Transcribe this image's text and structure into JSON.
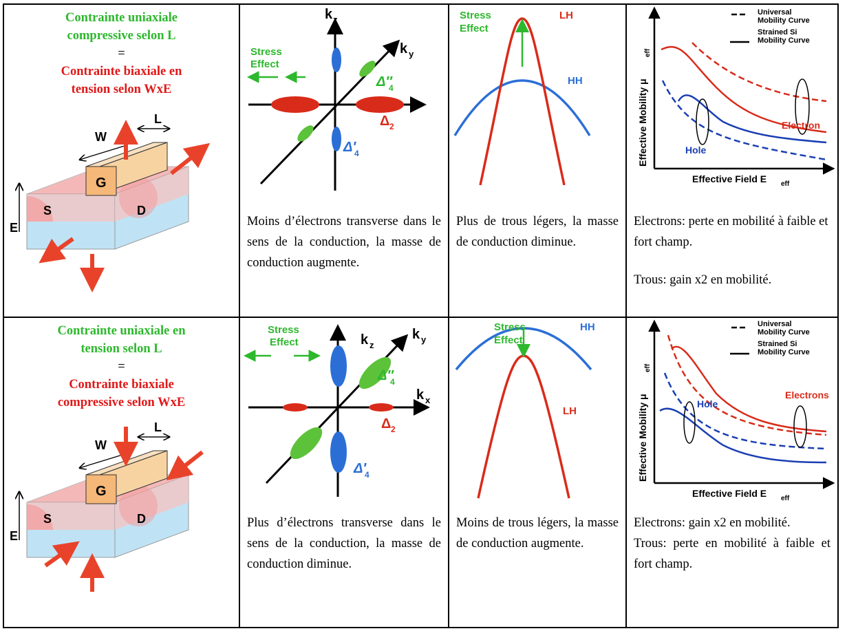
{
  "row1": {
    "title": {
      "line1": "Contrainte uniaxiale",
      "line2": "compressive selon L",
      "eq": "=",
      "line3": "Contrainte biaxiale en",
      "line4": "tension selon WxE"
    },
    "device": {
      "w": "W",
      "l": "L",
      "g": "G",
      "s": "S",
      "d": "D",
      "e": "E"
    },
    "kspace": {
      "kz": "k",
      "kz_sub": "z",
      "ky": "k",
      "ky_sub": "y",
      "stress1": "Stress",
      "stress2": "Effect",
      "d4pp": "Δ″",
      "d4pp_sub": "4",
      "d2": "Δ",
      "d2_sub": "2",
      "d4p": "Δ′",
      "d4p_sub": "4"
    },
    "bands": {
      "stress1": "Stress",
      "stress2": "Effect",
      "lh": "LH",
      "hh": "HH"
    },
    "mobility": {
      "leg1a": "Universal",
      "leg1b": "Mobility Curve",
      "leg2a": "Strained Si",
      "leg2b": "Mobility Curve",
      "ylabel": "Effective Mobility μ",
      "ylabel_sub": "eff",
      "xlabel": "Effective Field E",
      "xlabel_sub": "eff",
      "electron": "Electron",
      "hole": "Hole"
    },
    "text2": "Moins d’électrons transverse dans le sens de la conduction, la masse de conduction augmente.",
    "text3": "Plus de trous légers, la masse de conduction diminue.",
    "text4a": "Electrons: perte en mobilité à faible et fort champ.",
    "text4b": "Trous: gain x2 en mobilité."
  },
  "row2": {
    "title": {
      "line1": "Contrainte uniaxiale en",
      "line2": "tension selon L",
      "eq": "=",
      "line3": "Contrainte biaxiale",
      "line4": "compressive selon WxE"
    },
    "device": {
      "w": "W",
      "l": "L",
      "g": "G",
      "s": "S",
      "d": "D",
      "e": "E"
    },
    "kspace": {
      "kz": "k",
      "kz_sub": "z",
      "ky": "k",
      "ky_sub": "y",
      "kx": "k",
      "kx_sub": "x",
      "stress1": "Stress",
      "stress2": "Effect",
      "d4pp": "Δ″",
      "d4pp_sub": "4",
      "d2": "Δ",
      "d2_sub": "2",
      "d4p": "Δ′",
      "d4p_sub": "4"
    },
    "bands": {
      "stress1": "Stress",
      "stress2": "Effect",
      "lh": "LH",
      "hh": "HH"
    },
    "mobility": {
      "leg1a": "Universal",
      "leg1b": "Mobility Curve",
      "leg2a": "Strained Si",
      "leg2b": "Mobility Curve",
      "ylabel": "Effective Mobility μ",
      "ylabel_sub": "eff",
      "xlabel": "Effective Field E",
      "xlabel_sub": "eff",
      "electron": "Electrons",
      "hole": "Hole"
    },
    "text2": "Plus d’électrons transverse dans le sens de la conduction, la masse de conduction diminue.",
    "text3": "Moins de trous légers, la masse de conduction augmente.",
    "text4a": "Electrons: gain x2 en mobilité.",
    "text4b": "Trous: perte en mobilité à faible et fort champ."
  },
  "colors": {
    "green": "#2db82d",
    "red": "#e01818",
    "blue": "#2b6fd6",
    "arrow": "#e8432a",
    "gate": "#f8d3a2",
    "substrate": "#bfe3f5",
    "doped": "#f4b4b4"
  }
}
